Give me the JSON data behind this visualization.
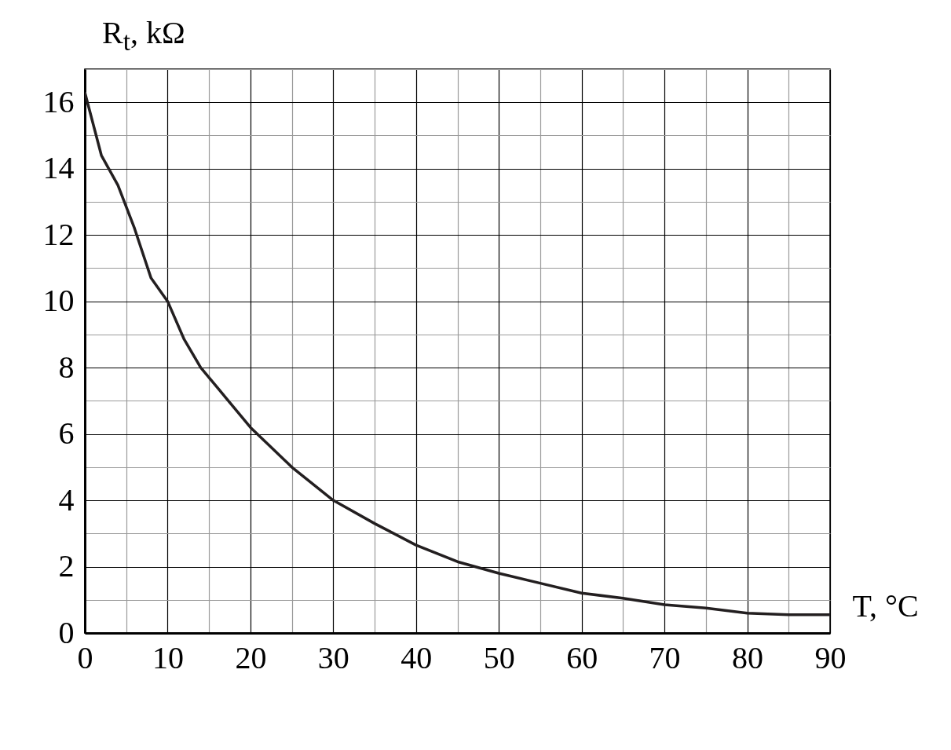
{
  "chart_data": {
    "type": "line",
    "xlabel": "T, °C",
    "ylabel": "R$_{t}$, kΩ",
    "x": [
      0,
      2,
      4,
      6,
      8,
      10,
      12,
      14,
      16,
      20,
      25,
      30,
      35,
      40,
      45,
      50,
      55,
      60,
      65,
      70,
      75,
      80,
      85,
      90
    ],
    "series": [
      {
        "color": "#231f20",
        "values": [
          16.3,
          14.4,
          13.5,
          12.2,
          10.7,
          10.0,
          8.85,
          8.0,
          7.4,
          6.2,
          5.0,
          4.0,
          3.3,
          2.65,
          2.15,
          1.8,
          1.5,
          1.2,
          1.05,
          0.85,
          0.75,
          0.6,
          0.55,
          0.55
        ]
      }
    ],
    "xlim": [
      0,
      90
    ],
    "xticks": [
      0,
      {
        "value": 5,
        "label": null
      },
      10,
      {
        "value": 15,
        "label": null
      },
      20,
      {
        "value": 25,
        "label": null
      },
      30,
      {
        "value": 35,
        "label": null
      },
      40,
      {
        "value": 45,
        "label": null
      },
      50,
      {
        "value": 55,
        "label": null
      },
      60,
      {
        "value": 65,
        "label": null
      },
      70,
      {
        "value": 75,
        "label": null
      },
      80,
      {
        "value": 85,
        "label": null
      },
      90
    ],
    "ylim": [
      0,
      17
    ],
    "yticks": [
      0,
      {
        "value": 1,
        "label": null
      },
      2,
      {
        "value": 3,
        "label": null
      },
      4,
      {
        "value": 5,
        "label": null
      },
      6,
      {
        "value": 7,
        "label": null
      },
      8,
      {
        "value": 9,
        "label": null
      },
      10,
      {
        "value": 11,
        "label": null
      },
      12,
      {
        "value": 13,
        "label": null
      },
      14,
      {
        "value": 15,
        "label": null
      },
      16,
      {
        "value": 17,
        "label": null
      }
    ],
    "grid": true,
    "marker": "none",
    "line_style": "solid"
  }
}
